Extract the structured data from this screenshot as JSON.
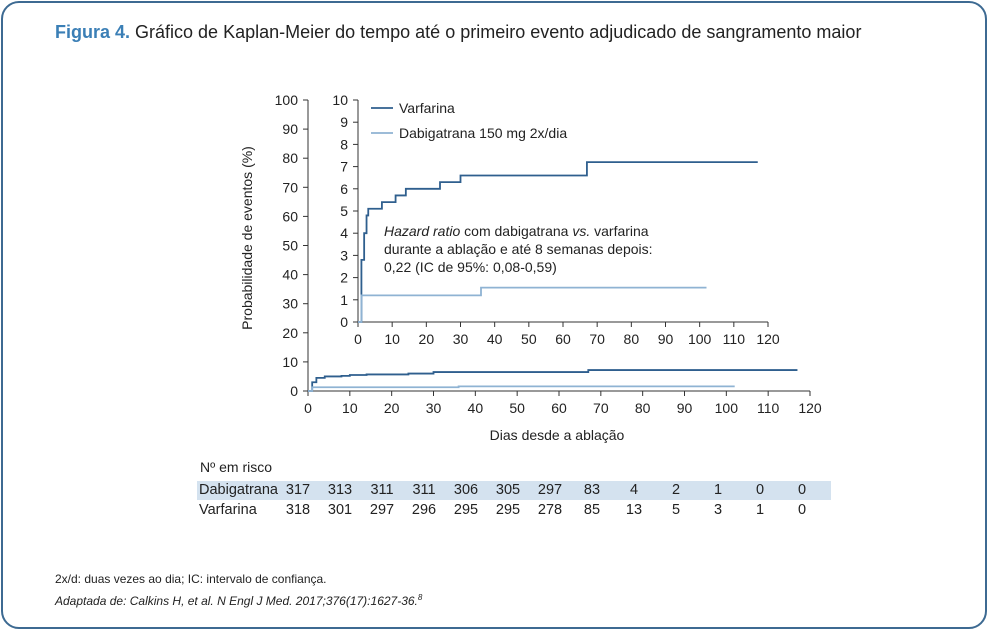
{
  "title": {
    "figure_label": "Figura 4.",
    "text": "Gráfico de Kaplan-Meier do tempo até o primeiro evento adjudicado de sangramento maior"
  },
  "colors": {
    "varfarina": "#2f5f8e",
    "dabigatrana": "#8fb3d3",
    "frame": "#3d6a92",
    "risk_shade": "#d4e2ef"
  },
  "chart_data": [
    {
      "type": "line",
      "name": "main",
      "xlabel": "Dias desde a ablação",
      "ylabel": "Probabilidade de eventos (%)",
      "xlim": [
        0,
        120
      ],
      "ylim": [
        0,
        100
      ],
      "x_ticks": [
        "0",
        "10",
        "20",
        "30",
        "40",
        "50",
        "60",
        "70",
        "80",
        "90",
        "100",
        "110",
        "120"
      ],
      "y_ticks": [
        "0",
        "10",
        "20",
        "30",
        "40",
        "50",
        "60",
        "70",
        "80",
        "90",
        "100"
      ],
      "series": [
        {
          "name": "Varfarina",
          "step": true,
          "points": [
            [
              0,
              0
            ],
            [
              1,
              3
            ],
            [
              2,
              4.5
            ],
            [
              4,
              5
            ],
            [
              8,
              5.2
            ],
            [
              10,
              5.5
            ],
            [
              14,
              5.7
            ],
            [
              24,
              6.0
            ],
            [
              30,
              6.5
            ],
            [
              67,
              7.2
            ],
            [
              117,
              7.2
            ]
          ]
        },
        {
          "name": "Dabigatrana 150 mg 2x/dia",
          "step": true,
          "points": [
            [
              0,
              0
            ],
            [
              1,
              1.3
            ],
            [
              36,
              1.3
            ],
            [
              36,
              1.6
            ],
            [
              102,
              1.6
            ]
          ]
        }
      ]
    },
    {
      "type": "line",
      "name": "inset",
      "xlim": [
        0,
        120
      ],
      "ylim": [
        0,
        10
      ],
      "x_ticks": [
        "0",
        "10",
        "20",
        "30",
        "40",
        "50",
        "60",
        "70",
        "80",
        "90",
        "100",
        "110",
        "120"
      ],
      "y_ticks": [
        "0",
        "1",
        "2",
        "3",
        "4",
        "5",
        "6",
        "7",
        "8",
        "9",
        "10"
      ],
      "legend": [
        "Varfarina",
        "Dabigatrana 150 mg 2x/dia"
      ],
      "legend_position": "top-left",
      "annotation": {
        "italic1": "Hazard ratio",
        "text1": " com dabigatrana ",
        "italic2": "vs.",
        "text2": " varfarina",
        "line2": "durante a ablação e até 8 semanas depois:",
        "line3": "0,22 (IC de 95%: 0,08-0,59)"
      },
      "series": [
        {
          "name": "Varfarina",
          "step": true,
          "points": [
            [
              0,
              0
            ],
            [
              1,
              2.8
            ],
            [
              1.8,
              4.0
            ],
            [
              2.5,
              4.8
            ],
            [
              3,
              5.1
            ],
            [
              7,
              5.4
            ],
            [
              11,
              5.7
            ],
            [
              14,
              6.0
            ],
            [
              24,
              6.3
            ],
            [
              30,
              6.6
            ],
            [
              67,
              7.2
            ],
            [
              117,
              7.2
            ]
          ]
        },
        {
          "name": "Dabigatrana 150 mg 2x/dia",
          "step": true,
          "points": [
            [
              0,
              0
            ],
            [
              1,
              1.2
            ],
            [
              36,
              1.2
            ],
            [
              36,
              1.55
            ],
            [
              102,
              1.55
            ]
          ]
        }
      ]
    }
  ],
  "risk_table": {
    "header": "Nº em risco",
    "rows": [
      {
        "label": "Dabigatrana",
        "values": [
          "317",
          "313",
          "311",
          "311",
          "306",
          "305",
          "297",
          "83",
          "4",
          "2",
          "1",
          "0",
          "0"
        ]
      },
      {
        "label": "Varfarina",
        "values": [
          "318",
          "301",
          "297",
          "296",
          "295",
          "295",
          "278",
          "85",
          "13",
          "5",
          "3",
          "1",
          "0"
        ]
      }
    ]
  },
  "footnote": "2x/d: duas vezes ao dia; IC: intervalo de confiança.",
  "source": {
    "text": "Adaptada de: Calkins H, et al. N Engl J Med. 2017;376(17):1627-36.",
    "ref": "8"
  }
}
